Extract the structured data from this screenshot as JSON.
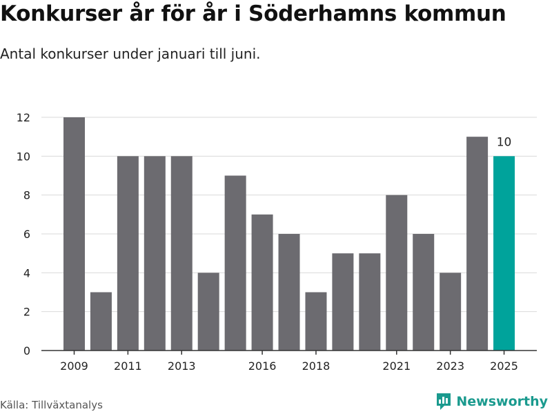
{
  "header": {
    "title": "Konkurser år för år i Söderhamns kommun",
    "subtitle": "Antal konkurser under januari till juni."
  },
  "footer": {
    "source": "Källa: Tillväxtanalys",
    "brand": "Newsworthy",
    "brand_icon": "newsworthy-logo-icon"
  },
  "colors": {
    "bar": "#6c6b70",
    "highlight": "#00a39b",
    "grid": "#d9d9d9",
    "axis": "#333333",
    "brand": "#1a9a8e"
  },
  "chart_data": {
    "type": "bar",
    "categories": [
      "2009",
      "2010",
      "2011",
      "2012",
      "2013",
      "2014",
      "2015",
      "2016",
      "2017",
      "2018",
      "2019",
      "2020",
      "2021",
      "2022",
      "2023",
      "2024",
      "2025"
    ],
    "values": [
      12,
      3,
      10,
      10,
      10,
      4,
      9,
      7,
      6,
      3,
      5,
      5,
      8,
      6,
      4,
      11,
      10
    ],
    "x_tick_labels": [
      "2009",
      "2011",
      "2013",
      "2016",
      "2018",
      "2021",
      "2023",
      "2025"
    ],
    "y_ticks": [
      0,
      2,
      4,
      6,
      8,
      10,
      12
    ],
    "ylim": [
      0,
      12
    ],
    "highlight_category": "2025",
    "data_labels": [
      {
        "category": "2025",
        "text": "10"
      }
    ],
    "grid": true,
    "legend": "none"
  }
}
